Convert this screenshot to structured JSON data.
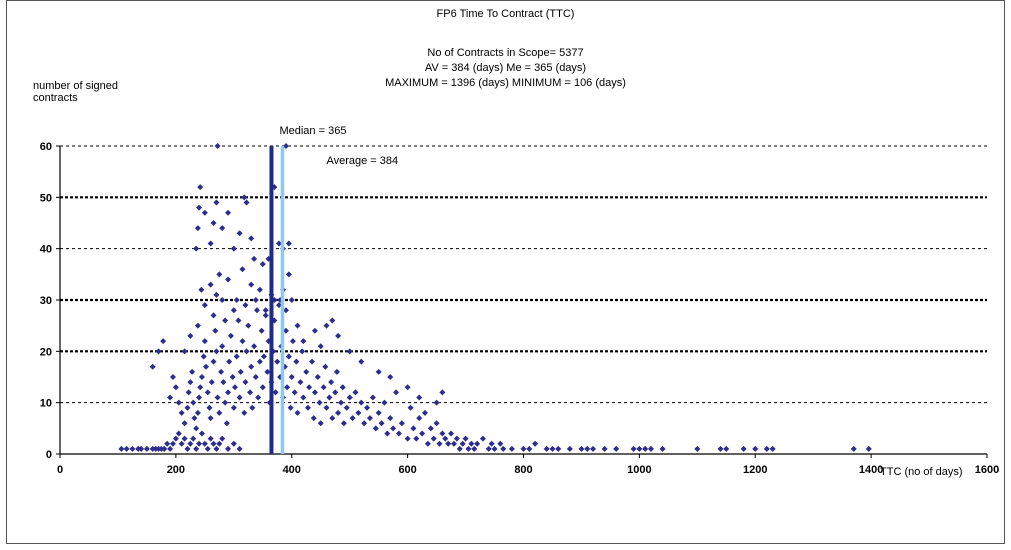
{
  "chart_data": {
    "type": "scatter",
    "title": "FP6 Time To Contract (TTC)",
    "subtitle_lines": [
      "No of Contracts in Scope= 5377",
      "AV = 384 (days) Me = 365 (days)",
      "MAXIMUM = 1396 (days) MINIMUM = 106 (days)"
    ],
    "ylabel": "number of signed\ncontracts",
    "xlabel": "TTC (no of days)",
    "xlim": [
      0,
      1600
    ],
    "ylim": [
      0,
      60
    ],
    "x_ticks": [
      0,
      200,
      400,
      600,
      800,
      1000,
      1200,
      1400,
      1600
    ],
    "y_ticks": [
      0,
      10,
      20,
      30,
      40,
      50,
      60
    ],
    "grid": true,
    "grid_bold_y": [
      20,
      30,
      50
    ],
    "marker_color": "#2e2d8f",
    "reference_lines": [
      {
        "label": "Median = 365",
        "x": 365,
        "color": "#1f2a8c"
      },
      {
        "label": "Average = 384",
        "x": 384,
        "color": "#8fc7ef"
      }
    ],
    "points": [
      [
        106,
        1
      ],
      [
        115,
        1
      ],
      [
        125,
        1
      ],
      [
        135,
        1
      ],
      [
        140,
        1
      ],
      [
        150,
        1
      ],
      [
        160,
        1
      ],
      [
        165,
        1
      ],
      [
        170,
        1
      ],
      [
        175,
        1
      ],
      [
        180,
        1
      ],
      [
        185,
        2
      ],
      [
        190,
        1
      ],
      [
        195,
        2
      ],
      [
        200,
        3
      ],
      [
        205,
        4
      ],
      [
        210,
        2
      ],
      [
        215,
        3
      ],
      [
        220,
        1
      ],
      [
        225,
        2
      ],
      [
        230,
        3
      ],
      [
        235,
        1
      ],
      [
        240,
        2
      ],
      [
        245,
        4
      ],
      [
        250,
        2
      ],
      [
        255,
        1
      ],
      [
        260,
        3
      ],
      [
        265,
        2
      ],
      [
        270,
        1
      ],
      [
        275,
        2
      ],
      [
        280,
        3
      ],
      [
        290,
        1
      ],
      [
        300,
        2
      ],
      [
        310,
        1
      ],
      [
        160,
        17
      ],
      [
        170,
        20
      ],
      [
        178,
        22
      ],
      [
        190,
        11
      ],
      [
        195,
        15
      ],
      [
        200,
        13
      ],
      [
        205,
        10
      ],
      [
        210,
        8
      ],
      [
        215,
        6
      ],
      [
        220,
        9
      ],
      [
        222,
        12
      ],
      [
        225,
        14
      ],
      [
        228,
        16
      ],
      [
        230,
        10
      ],
      [
        232,
        7
      ],
      [
        235,
        5
      ],
      [
        238,
        8
      ],
      [
        240,
        11
      ],
      [
        242,
        13
      ],
      [
        245,
        15
      ],
      [
        248,
        19
      ],
      [
        250,
        22
      ],
      [
        252,
        17
      ],
      [
        255,
        12
      ],
      [
        258,
        9
      ],
      [
        260,
        7
      ],
      [
        262,
        14
      ],
      [
        265,
        18
      ],
      [
        268,
        24
      ],
      [
        270,
        20
      ],
      [
        272,
        11
      ],
      [
        275,
        8
      ],
      [
        278,
        16
      ],
      [
        280,
        21
      ],
      [
        282,
        14
      ],
      [
        285,
        10
      ],
      [
        288,
        6
      ],
      [
        290,
        12
      ],
      [
        292,
        18
      ],
      [
        295,
        23
      ],
      [
        298,
        15
      ],
      [
        300,
        9
      ],
      [
        302,
        13
      ],
      [
        305,
        19
      ],
      [
        308,
        26
      ],
      [
        310,
        11
      ],
      [
        312,
        16
      ],
      [
        315,
        22
      ],
      [
        318,
        8
      ],
      [
        320,
        14
      ],
      [
        322,
        20
      ],
      [
        325,
        25
      ],
      [
        328,
        12
      ],
      [
        330,
        17
      ],
      [
        332,
        9
      ],
      [
        335,
        21
      ],
      [
        338,
        15
      ],
      [
        340,
        28
      ],
      [
        342,
        11
      ],
      [
        345,
        18
      ],
      [
        348,
        24
      ],
      [
        350,
        13
      ],
      [
        352,
        19
      ],
      [
        355,
        27
      ],
      [
        358,
        16
      ],
      [
        360,
        22
      ],
      [
        362,
        10
      ],
      [
        365,
        14
      ],
      [
        368,
        20
      ],
      [
        370,
        26
      ],
      [
        372,
        12
      ],
      [
        375,
        18
      ],
      [
        378,
        29
      ],
      [
        380,
        15
      ],
      [
        382,
        21
      ],
      [
        385,
        11
      ],
      [
        388,
        17
      ],
      [
        390,
        24
      ],
      [
        392,
        13
      ],
      [
        395,
        19
      ],
      [
        398,
        9
      ],
      [
        400,
        15
      ],
      [
        402,
        22
      ],
      [
        405,
        12
      ],
      [
        408,
        18
      ],
      [
        410,
        8
      ],
      [
        415,
        14
      ],
      [
        418,
        20
      ],
      [
        420,
        11
      ],
      [
        425,
        16
      ],
      [
        428,
        9
      ],
      [
        430,
        13
      ],
      [
        435,
        18
      ],
      [
        438,
        7
      ],
      [
        440,
        12
      ],
      [
        445,
        15
      ],
      [
        448,
        10
      ],
      [
        450,
        6
      ],
      [
        455,
        13
      ],
      [
        458,
        17
      ],
      [
        460,
        9
      ],
      [
        465,
        11
      ],
      [
        468,
        14
      ],
      [
        470,
        7
      ],
      [
        475,
        12
      ],
      [
        478,
        16
      ],
      [
        480,
        8
      ],
      [
        485,
        10
      ],
      [
        488,
        13
      ],
      [
        490,
        6
      ],
      [
        495,
        9
      ],
      [
        500,
        11
      ],
      [
        505,
        7
      ],
      [
        510,
        12
      ],
      [
        515,
        8
      ],
      [
        520,
        10
      ],
      [
        525,
        6
      ],
      [
        530,
        9
      ],
      [
        535,
        7
      ],
      [
        540,
        11
      ],
      [
        545,
        5
      ],
      [
        550,
        8
      ],
      [
        555,
        6
      ],
      [
        560,
        10
      ],
      [
        565,
        4
      ],
      [
        570,
        7
      ],
      [
        575,
        5
      ],
      [
        580,
        12
      ],
      [
        585,
        4
      ],
      [
        590,
        6
      ],
      [
        600,
        3
      ],
      [
        605,
        9
      ],
      [
        610,
        5
      ],
      [
        615,
        3
      ],
      [
        620,
        7
      ],
      [
        625,
        4
      ],
      [
        630,
        8
      ],
      [
        635,
        2
      ],
      [
        640,
        5
      ],
      [
        645,
        3
      ],
      [
        650,
        6
      ],
      [
        655,
        2
      ],
      [
        660,
        4
      ],
      [
        665,
        3
      ],
      [
        670,
        2
      ],
      [
        675,
        4
      ],
      [
        680,
        2
      ],
      [
        685,
        3
      ],
      [
        690,
        1
      ],
      [
        695,
        2
      ],
      [
        700,
        3
      ],
      [
        705,
        1
      ],
      [
        710,
        2
      ],
      [
        715,
        1
      ],
      [
        720,
        2
      ],
      [
        730,
        3
      ],
      [
        740,
        1
      ],
      [
        745,
        2
      ],
      [
        750,
        1
      ],
      [
        760,
        2
      ],
      [
        765,
        1
      ],
      [
        780,
        1
      ],
      [
        800,
        1
      ],
      [
        810,
        1
      ],
      [
        820,
        2
      ],
      [
        840,
        1
      ],
      [
        850,
        1
      ],
      [
        860,
        1
      ],
      [
        880,
        1
      ],
      [
        900,
        1
      ],
      [
        910,
        1
      ],
      [
        920,
        1
      ],
      [
        940,
        1
      ],
      [
        960,
        1
      ],
      [
        990,
        1
      ],
      [
        1000,
        1
      ],
      [
        1010,
        1
      ],
      [
        1020,
        1
      ],
      [
        1040,
        1
      ],
      [
        1100,
        1
      ],
      [
        1140,
        1
      ],
      [
        1150,
        1
      ],
      [
        1180,
        1
      ],
      [
        1200,
        1
      ],
      [
        1220,
        1
      ],
      [
        1230,
        1
      ],
      [
        1370,
        1
      ],
      [
        1396,
        1
      ],
      [
        215,
        20
      ],
      [
        225,
        23
      ],
      [
        238,
        25
      ],
      [
        244,
        32
      ],
      [
        250,
        29
      ],
      [
        260,
        33
      ],
      [
        265,
        27
      ],
      [
        270,
        31
      ],
      [
        275,
        35
      ],
      [
        280,
        30
      ],
      [
        285,
        26
      ],
      [
        290,
        34
      ],
      [
        300,
        28
      ],
      [
        305,
        30
      ],
      [
        315,
        36
      ],
      [
        320,
        29
      ],
      [
        330,
        33
      ],
      [
        335,
        38
      ],
      [
        338,
        30
      ],
      [
        345,
        32
      ],
      [
        350,
        37
      ],
      [
        355,
        28
      ],
      [
        365,
        31
      ],
      [
        370,
        30
      ],
      [
        380,
        30
      ],
      [
        385,
        32
      ],
      [
        390,
        28
      ],
      [
        395,
        35
      ],
      [
        400,
        30
      ],
      [
        410,
        25
      ],
      [
        420,
        22
      ],
      [
        440,
        24
      ],
      [
        450,
        21
      ],
      [
        460,
        25
      ],
      [
        470,
        26
      ],
      [
        480,
        23
      ],
      [
        500,
        20
      ],
      [
        520,
        18
      ],
      [
        550,
        16
      ],
      [
        570,
        15
      ],
      [
        600,
        13
      ],
      [
        620,
        11
      ],
      [
        650,
        10
      ],
      [
        660,
        12
      ],
      [
        235,
        40
      ],
      [
        238,
        44
      ],
      [
        240,
        48
      ],
      [
        242,
        52
      ],
      [
        250,
        47
      ],
      [
        260,
        41
      ],
      [
        265,
        45
      ],
      [
        270,
        49
      ],
      [
        272,
        60
      ],
      [
        280,
        44
      ],
      [
        290,
        47
      ],
      [
        300,
        40
      ],
      [
        310,
        43
      ],
      [
        318,
        50
      ],
      [
        322,
        49
      ],
      [
        330,
        42
      ],
      [
        360,
        38
      ],
      [
        370,
        52
      ],
      [
        378,
        41
      ],
      [
        385,
        40
      ],
      [
        390,
        60
      ],
      [
        395,
        41
      ]
    ]
  }
}
